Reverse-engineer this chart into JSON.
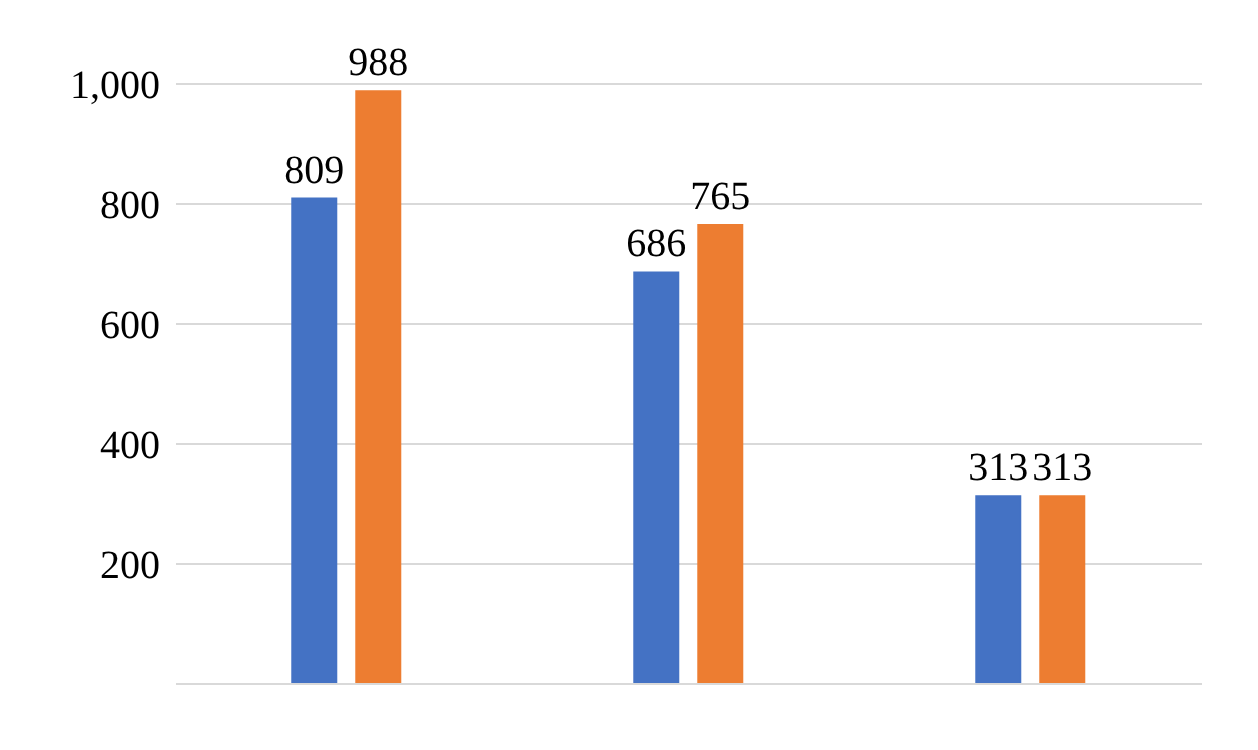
{
  "chart_data": {
    "type": "bar",
    "categories": [
      null,
      null,
      null
    ],
    "series": [
      {
        "color": "#4472c4",
        "values": [
          809,
          686,
          313
        ]
      },
      {
        "color": "#ed7d31",
        "values": [
          988,
          765,
          313
        ]
      }
    ],
    "ylim": [
      0,
      1000
    ],
    "yticks": [
      200,
      400,
      600,
      800,
      {
        "value": 1000,
        "label": "1,000"
      }
    ],
    "grid": "y",
    "data_labels": true,
    "legend": false
  }
}
